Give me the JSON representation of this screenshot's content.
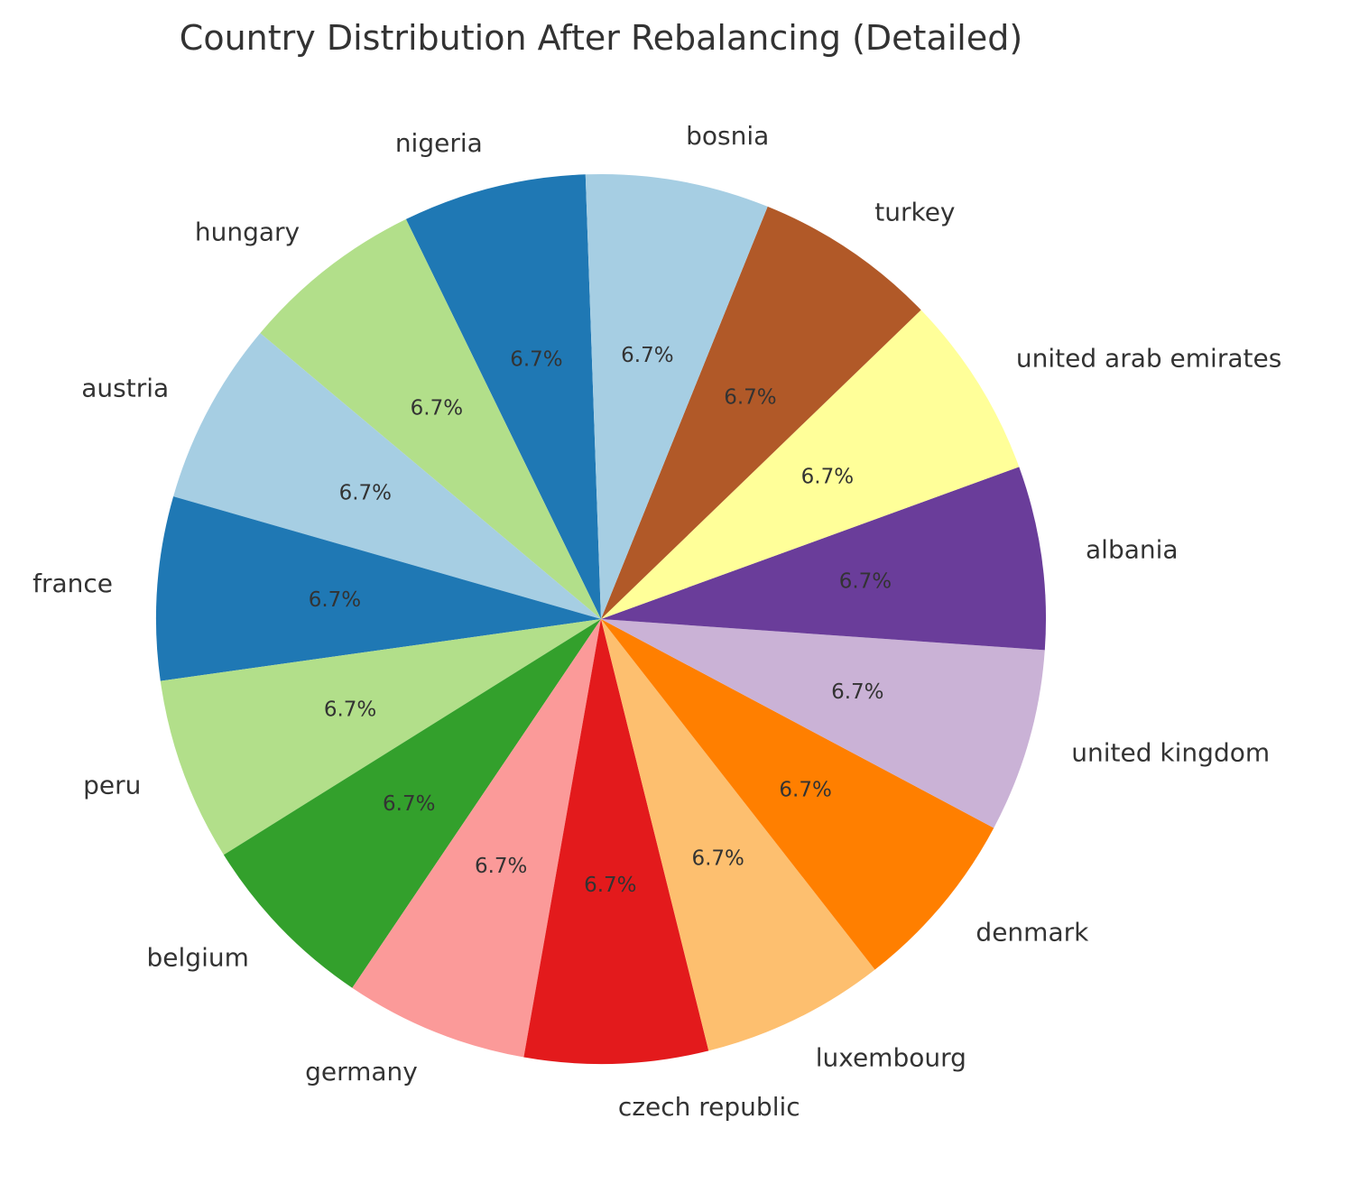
{
  "chart_data": {
    "type": "pie",
    "title": "Country Distribution After Rebalancing (Detailed)",
    "start_angle_deg": 92,
    "direction": "counterclockwise",
    "slices": [
      {
        "label": "nigeria",
        "value": 6.7,
        "pct_label": "6.7%",
        "color": "#1f78b4"
      },
      {
        "label": "hungary",
        "value": 6.7,
        "pct_label": "6.7%",
        "color": "#b2df8a"
      },
      {
        "label": "austria",
        "value": 6.7,
        "pct_label": "6.7%",
        "color": "#a6cee3"
      },
      {
        "label": "france",
        "value": 6.7,
        "pct_label": "6.7%",
        "color": "#1f78b4"
      },
      {
        "label": "peru",
        "value": 6.7,
        "pct_label": "6.7%",
        "color": "#b2df8a"
      },
      {
        "label": "belgium",
        "value": 6.7,
        "pct_label": "6.7%",
        "color": "#33a02c"
      },
      {
        "label": "germany",
        "value": 6.7,
        "pct_label": "6.7%",
        "color": "#fb9a99"
      },
      {
        "label": "czech republic",
        "value": 6.7,
        "pct_label": "6.7%",
        "color": "#e31a1c"
      },
      {
        "label": "luxembourg",
        "value": 6.7,
        "pct_label": "6.7%",
        "color": "#fdbf6f"
      },
      {
        "label": "denmark",
        "value": 6.7,
        "pct_label": "6.7%",
        "color": "#ff7f00"
      },
      {
        "label": "united kingdom",
        "value": 6.7,
        "pct_label": "6.7%",
        "color": "#cab2d6"
      },
      {
        "label": "albania",
        "value": 6.7,
        "pct_label": "6.7%",
        "color": "#6a3d9a"
      },
      {
        "label": "united arab emirates",
        "value": 6.7,
        "pct_label": "6.7%",
        "color": "#ffff99"
      },
      {
        "label": "turkey",
        "value": 6.7,
        "pct_label": "6.7%",
        "color": "#b15928"
      },
      {
        "label": "bosnia",
        "value": 6.7,
        "pct_label": "6.7%",
        "color": "#a6cee3"
      }
    ]
  }
}
